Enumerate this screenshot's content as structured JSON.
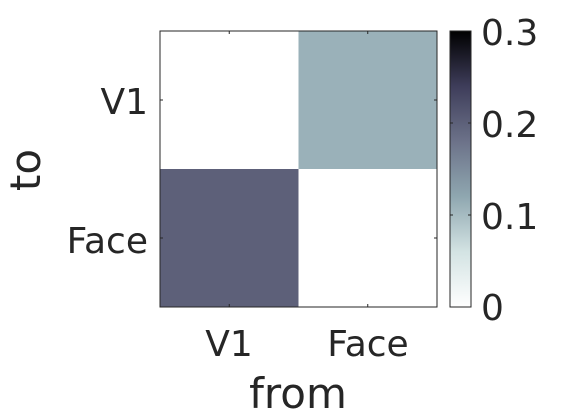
{
  "chart_data": {
    "type": "heatmap",
    "x_categories": [
      "V1",
      "Face"
    ],
    "y_categories": [
      "V1",
      "Face"
    ],
    "xlabel": "from",
    "ylabel": "to",
    "values": [
      [
        0.0,
        0.11
      ],
      [
        0.2,
        0.0
      ]
    ],
    "colorbar": {
      "range": [
        0,
        0.3
      ],
      "ticks": [
        "0",
        "0.1",
        "0.2",
        "0.3"
      ]
    },
    "colorscale": [
      "#ffffff",
      "#d3e3e3",
      "#8fa7b0",
      "#6c7289",
      "#3e3d5a",
      "#000000"
    ]
  }
}
